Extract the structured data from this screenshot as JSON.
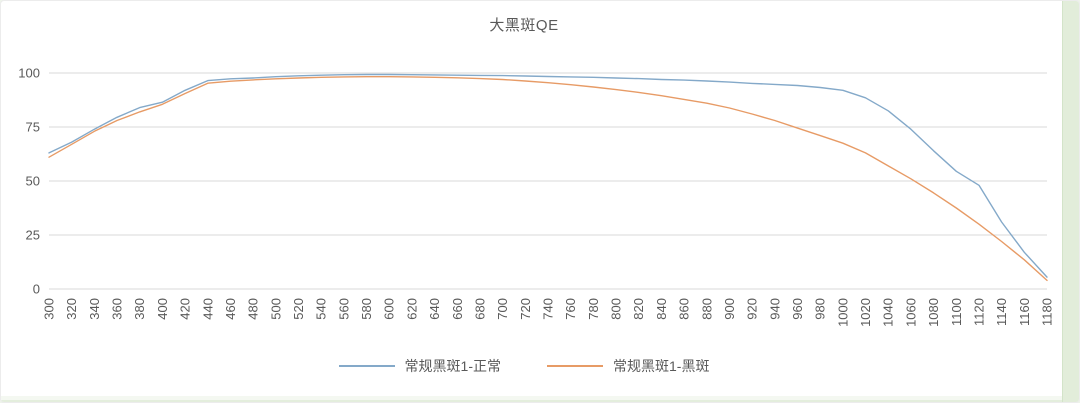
{
  "chart": {
    "title": "大黑斑QE",
    "colors": {
      "grid": "#D9D9D9",
      "axis_text": "#595959",
      "title_text": "#595959",
      "card_bg": "#FFFFFF",
      "right_strip": "#E2EDDA"
    }
  },
  "legend": {
    "items": [
      {
        "label": "常规黑斑1-正常",
        "color": "#84A9C9"
      },
      {
        "label": "常规黑斑1-黑斑",
        "color": "#E79B66"
      }
    ]
  },
  "chart_data": {
    "type": "line",
    "title": "大黑斑QE",
    "xlabel": "",
    "ylabel": "",
    "x": [
      300,
      320,
      340,
      360,
      380,
      400,
      420,
      440,
      460,
      480,
      500,
      520,
      540,
      560,
      580,
      600,
      620,
      640,
      660,
      680,
      700,
      720,
      740,
      760,
      780,
      800,
      820,
      840,
      860,
      880,
      900,
      920,
      940,
      960,
      980,
      1000,
      1020,
      1040,
      1060,
      1080,
      1100,
      1120,
      1140,
      1160,
      1180
    ],
    "series": [
      {
        "name": "常规黑斑1-正常",
        "color": "#84A9C9",
        "values": [
          63,
          68,
          74,
          79.5,
          84,
          86.5,
          92,
          96.5,
          97.3,
          97.7,
          98.3,
          98.7,
          99,
          99.2,
          99.3,
          99.3,
          99.2,
          99.1,
          99,
          98.9,
          98.8,
          98.6,
          98.4,
          98.2,
          98,
          97.7,
          97.4,
          97,
          96.7,
          96.3,
          95.8,
          95.2,
          94.7,
          94.2,
          93.3,
          92,
          88.5,
          82.5,
          74,
          64,
          54.5,
          48,
          31,
          17,
          5.5
        ]
      },
      {
        "name": "常规黑斑1-黑斑",
        "color": "#E79B66",
        "values": [
          61,
          67,
          73,
          78,
          82,
          85.5,
          90.5,
          95.3,
          96.2,
          96.8,
          97.3,
          97.7,
          98,
          98.2,
          98.3,
          98.3,
          98.2,
          98,
          97.8,
          97.4,
          97,
          96.3,
          95.5,
          94.6,
          93.5,
          92.3,
          91,
          89.5,
          87.8,
          86,
          83.8,
          81,
          78,
          74.5,
          71,
          67.5,
          63,
          57,
          51,
          44.5,
          37.5,
          30,
          22,
          13.5,
          4
        ]
      }
    ],
    "ylim": [
      0,
      100
    ],
    "yticks": [
      0,
      25,
      50,
      75,
      100
    ],
    "grid": "horizontal-only",
    "legend_position": "bottom"
  }
}
